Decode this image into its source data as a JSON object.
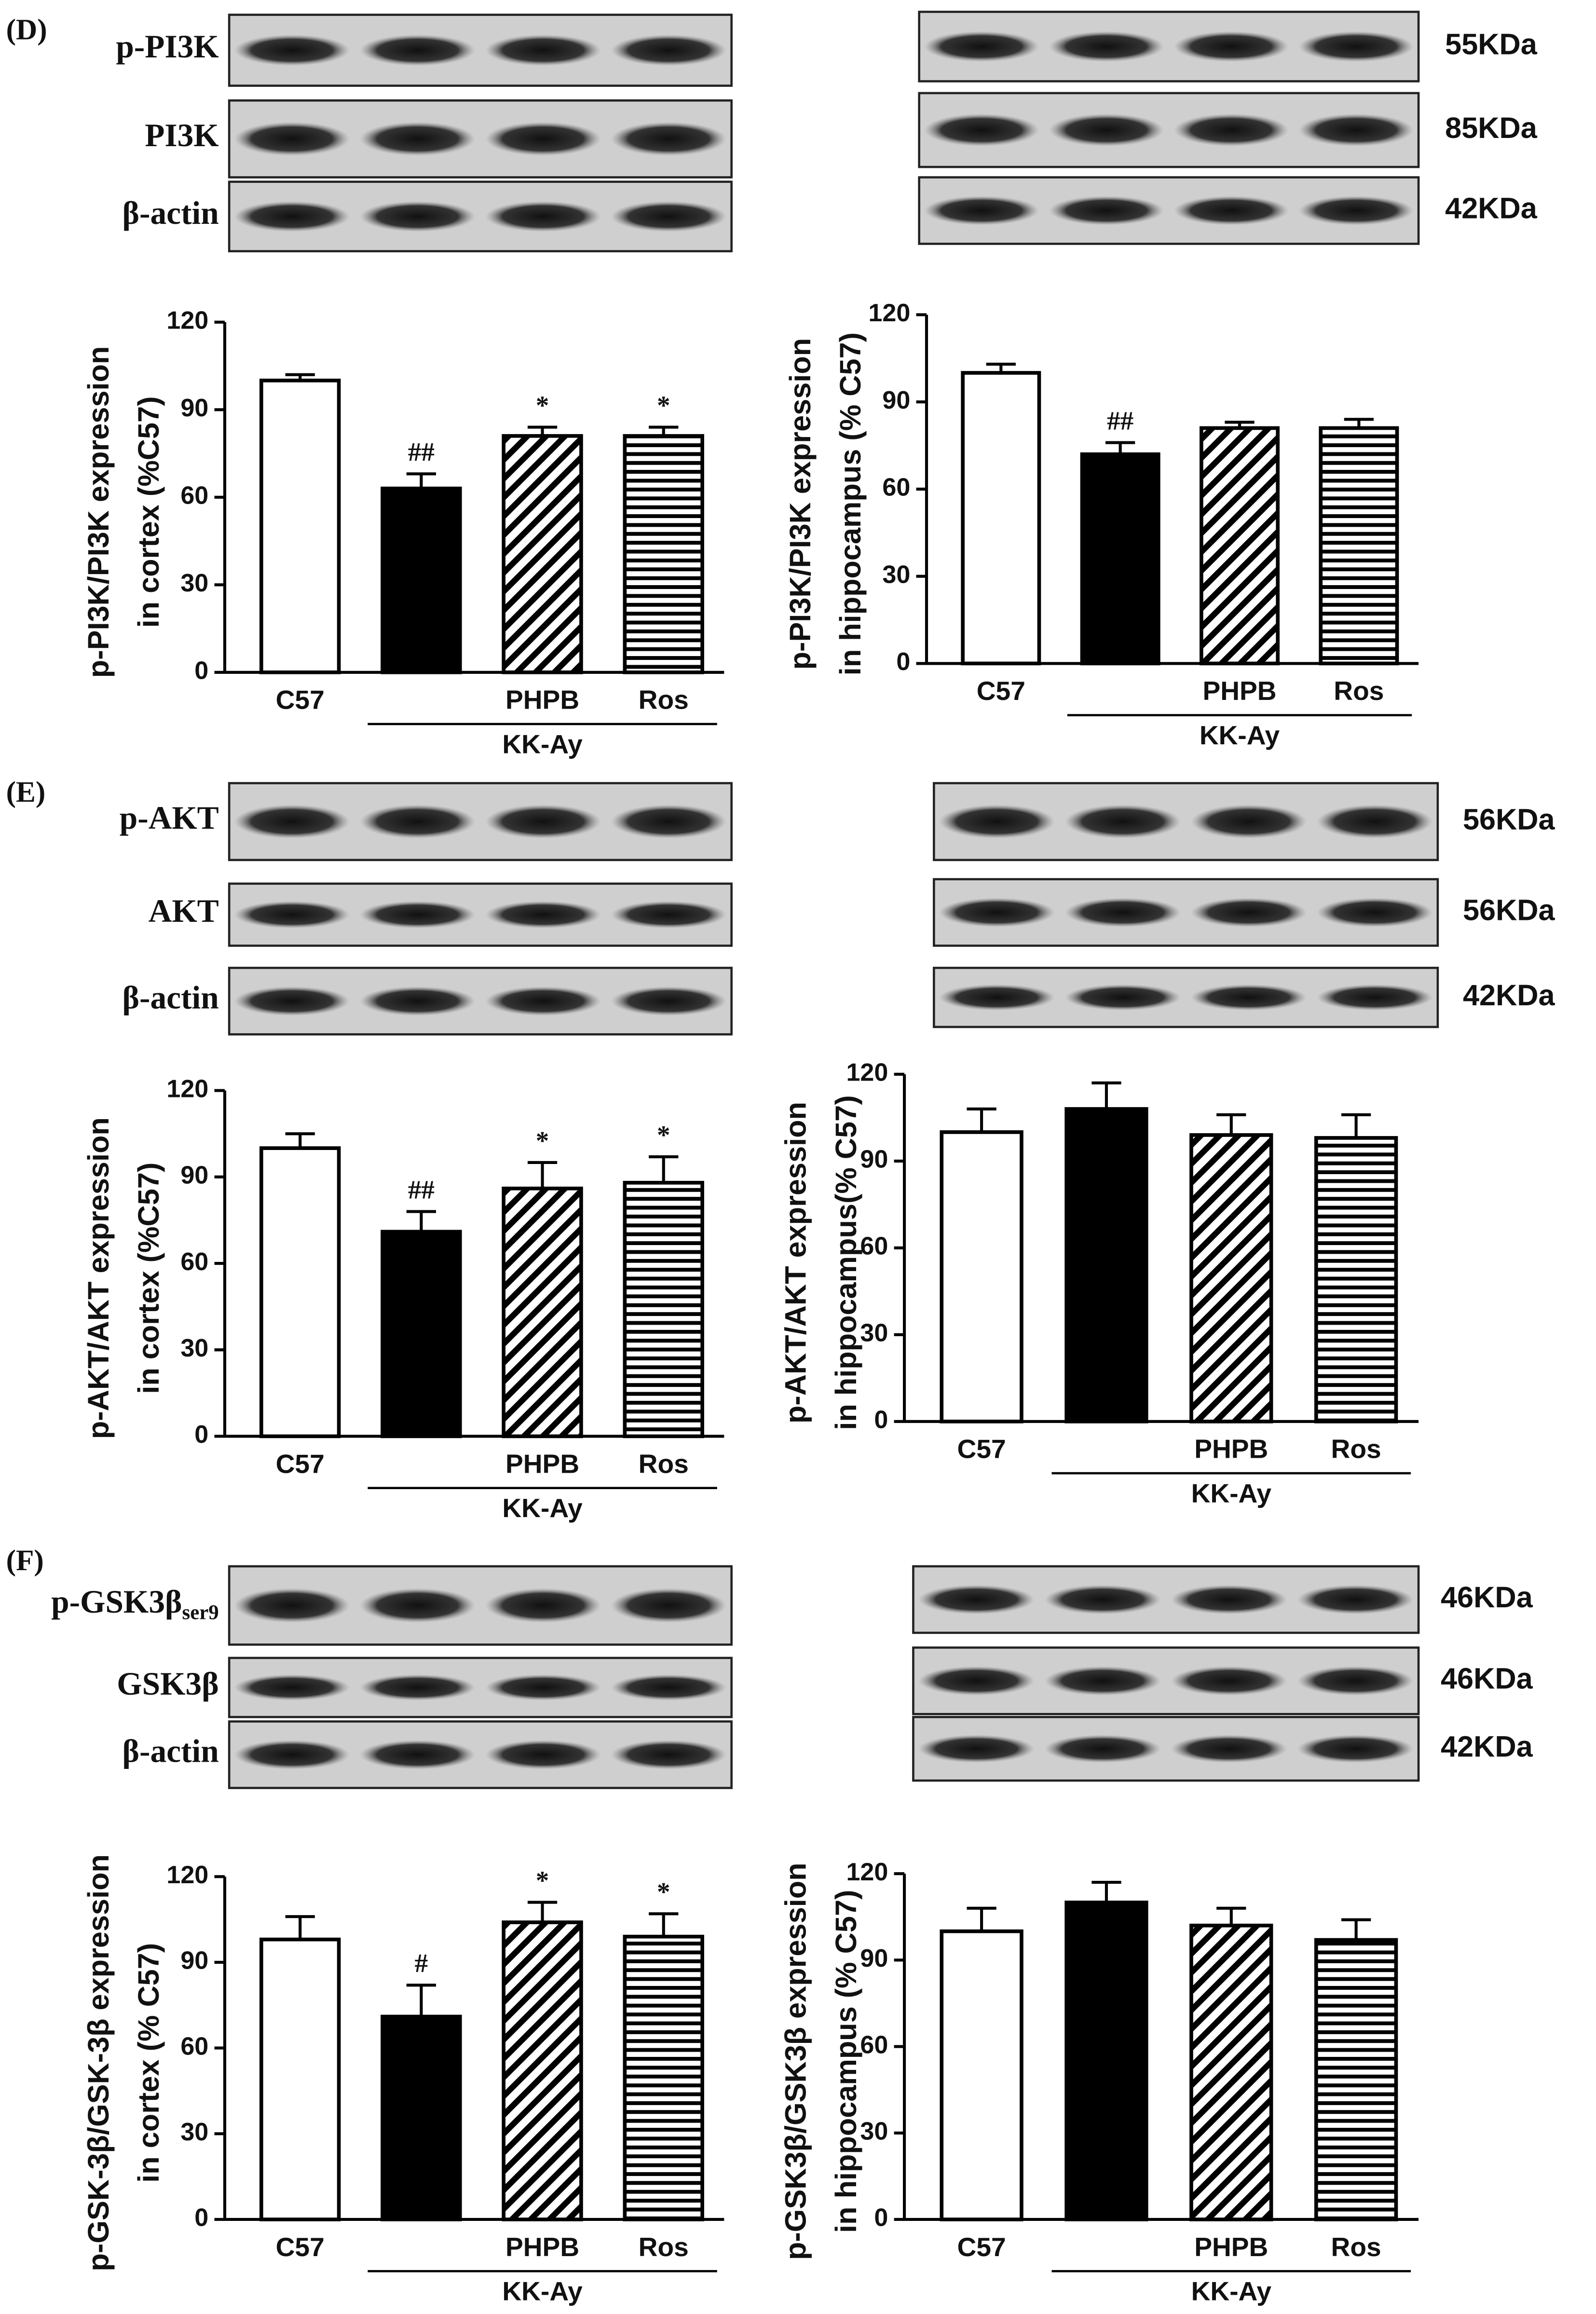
{
  "panels": [
    {
      "label": "(D)",
      "blots": [
        {
          "text": "p-PI3K"
        },
        {
          "text": "PI3K"
        },
        {
          "text": "β-actin"
        }
      ],
      "kda": [
        "55KDa",
        "85KDa",
        "42KDa"
      ]
    },
    {
      "label": "(E)",
      "blots": [
        {
          "text": "p-AKT"
        },
        {
          "text": "AKT"
        },
        {
          "text": "β-actin"
        }
      ],
      "kda": [
        "56KDa",
        "56KDa",
        "42KDa"
      ]
    },
    {
      "label": "(F)",
      "blots": [
        {
          "text": "p-GSK3β",
          "sub": "ser9"
        },
        {
          "text": "GSK3β"
        },
        {
          "text": "β-actin"
        }
      ],
      "kda": [
        "46KDa",
        "46KDa",
        "42KDa"
      ]
    }
  ],
  "chart_data": [
    {
      "type": "bar",
      "ylabel": [
        "p-PI3K/PI3K expression",
        "in cortex (%C57)"
      ],
      "categories": [
        "C57",
        null,
        "PHPB",
        "Ros"
      ],
      "group": "KK-Ay",
      "values": [
        100,
        63,
        81,
        81
      ],
      "errors": [
        2,
        5,
        3,
        3
      ],
      "annotations": [
        null,
        "##",
        "*",
        "*"
      ],
      "fills": [
        "white",
        "black",
        "hatch",
        "lines"
      ],
      "ylim": [
        0,
        120
      ],
      "yticks": [
        0,
        30,
        60,
        90,
        120
      ]
    },
    {
      "type": "bar",
      "ylabel": [
        "p-PI3K/PI3K expression",
        "in hippocampus (% C57)"
      ],
      "categories": [
        "C57",
        null,
        "PHPB",
        "Ros"
      ],
      "group": "KK-Ay",
      "values": [
        100,
        72,
        81,
        81
      ],
      "errors": [
        3,
        4,
        2,
        3
      ],
      "annotations": [
        null,
        "##",
        null,
        null
      ],
      "fills": [
        "white",
        "black",
        "hatch",
        "lines"
      ],
      "ylim": [
        0,
        120
      ],
      "yticks": [
        0,
        30,
        60,
        90,
        120
      ]
    },
    {
      "type": "bar",
      "ylabel": [
        "p-AKT/AKT expression",
        "in cortex (%C57)"
      ],
      "categories": [
        "C57",
        null,
        "PHPB",
        "Ros"
      ],
      "group": "KK-Ay",
      "values": [
        100,
        71,
        86,
        88
      ],
      "errors": [
        5,
        7,
        9,
        9
      ],
      "annotations": [
        null,
        "##",
        "*",
        "*"
      ],
      "fills": [
        "white",
        "black",
        "hatch",
        "lines"
      ],
      "ylim": [
        0,
        120
      ],
      "yticks": [
        0,
        30,
        60,
        90,
        120
      ]
    },
    {
      "type": "bar",
      "ylabel": [
        "p-AKT/AKT expression",
        "in hippocampus(% C57)"
      ],
      "categories": [
        "C57",
        null,
        "PHPB",
        "Ros"
      ],
      "group": "KK-Ay",
      "values": [
        100,
        108,
        99,
        98
      ],
      "errors": [
        8,
        9,
        7,
        8
      ],
      "annotations": [
        null,
        null,
        null,
        null
      ],
      "fills": [
        "white",
        "black",
        "hatch",
        "lines"
      ],
      "ylim": [
        0,
        120
      ],
      "yticks": [
        0,
        30,
        60,
        90,
        120
      ]
    },
    {
      "type": "bar",
      "ylabel": [
        "p-GSK-3β/GSK-3β expression",
        "in cortex (% C57)"
      ],
      "categories": [
        "C57",
        null,
        "PHPB",
        "Ros"
      ],
      "group": "KK-Ay",
      "values": [
        98,
        71,
        104,
        99
      ],
      "errors": [
        8,
        11,
        7,
        8
      ],
      "annotations": [
        null,
        "#",
        "*",
        "*"
      ],
      "fills": [
        "white",
        "black",
        "hatch",
        "lines"
      ],
      "ylim": [
        0,
        120
      ],
      "yticks": [
        0,
        30,
        60,
        90,
        120
      ]
    },
    {
      "type": "bar",
      "ylabel": [
        "p-GSK3β/GSK3β expression",
        "in hippocampus (% C57)"
      ],
      "categories": [
        "C57",
        null,
        "PHPB",
        "Ros"
      ],
      "group": "KK-Ay",
      "values": [
        100,
        110,
        102,
        97
      ],
      "errors": [
        8,
        7,
        6,
        7
      ],
      "annotations": [
        null,
        null,
        null,
        null
      ],
      "fills": [
        "white",
        "black",
        "hatch",
        "lines"
      ],
      "ylim": [
        0,
        120
      ],
      "yticks": [
        0,
        30,
        60,
        90,
        120
      ]
    }
  ]
}
